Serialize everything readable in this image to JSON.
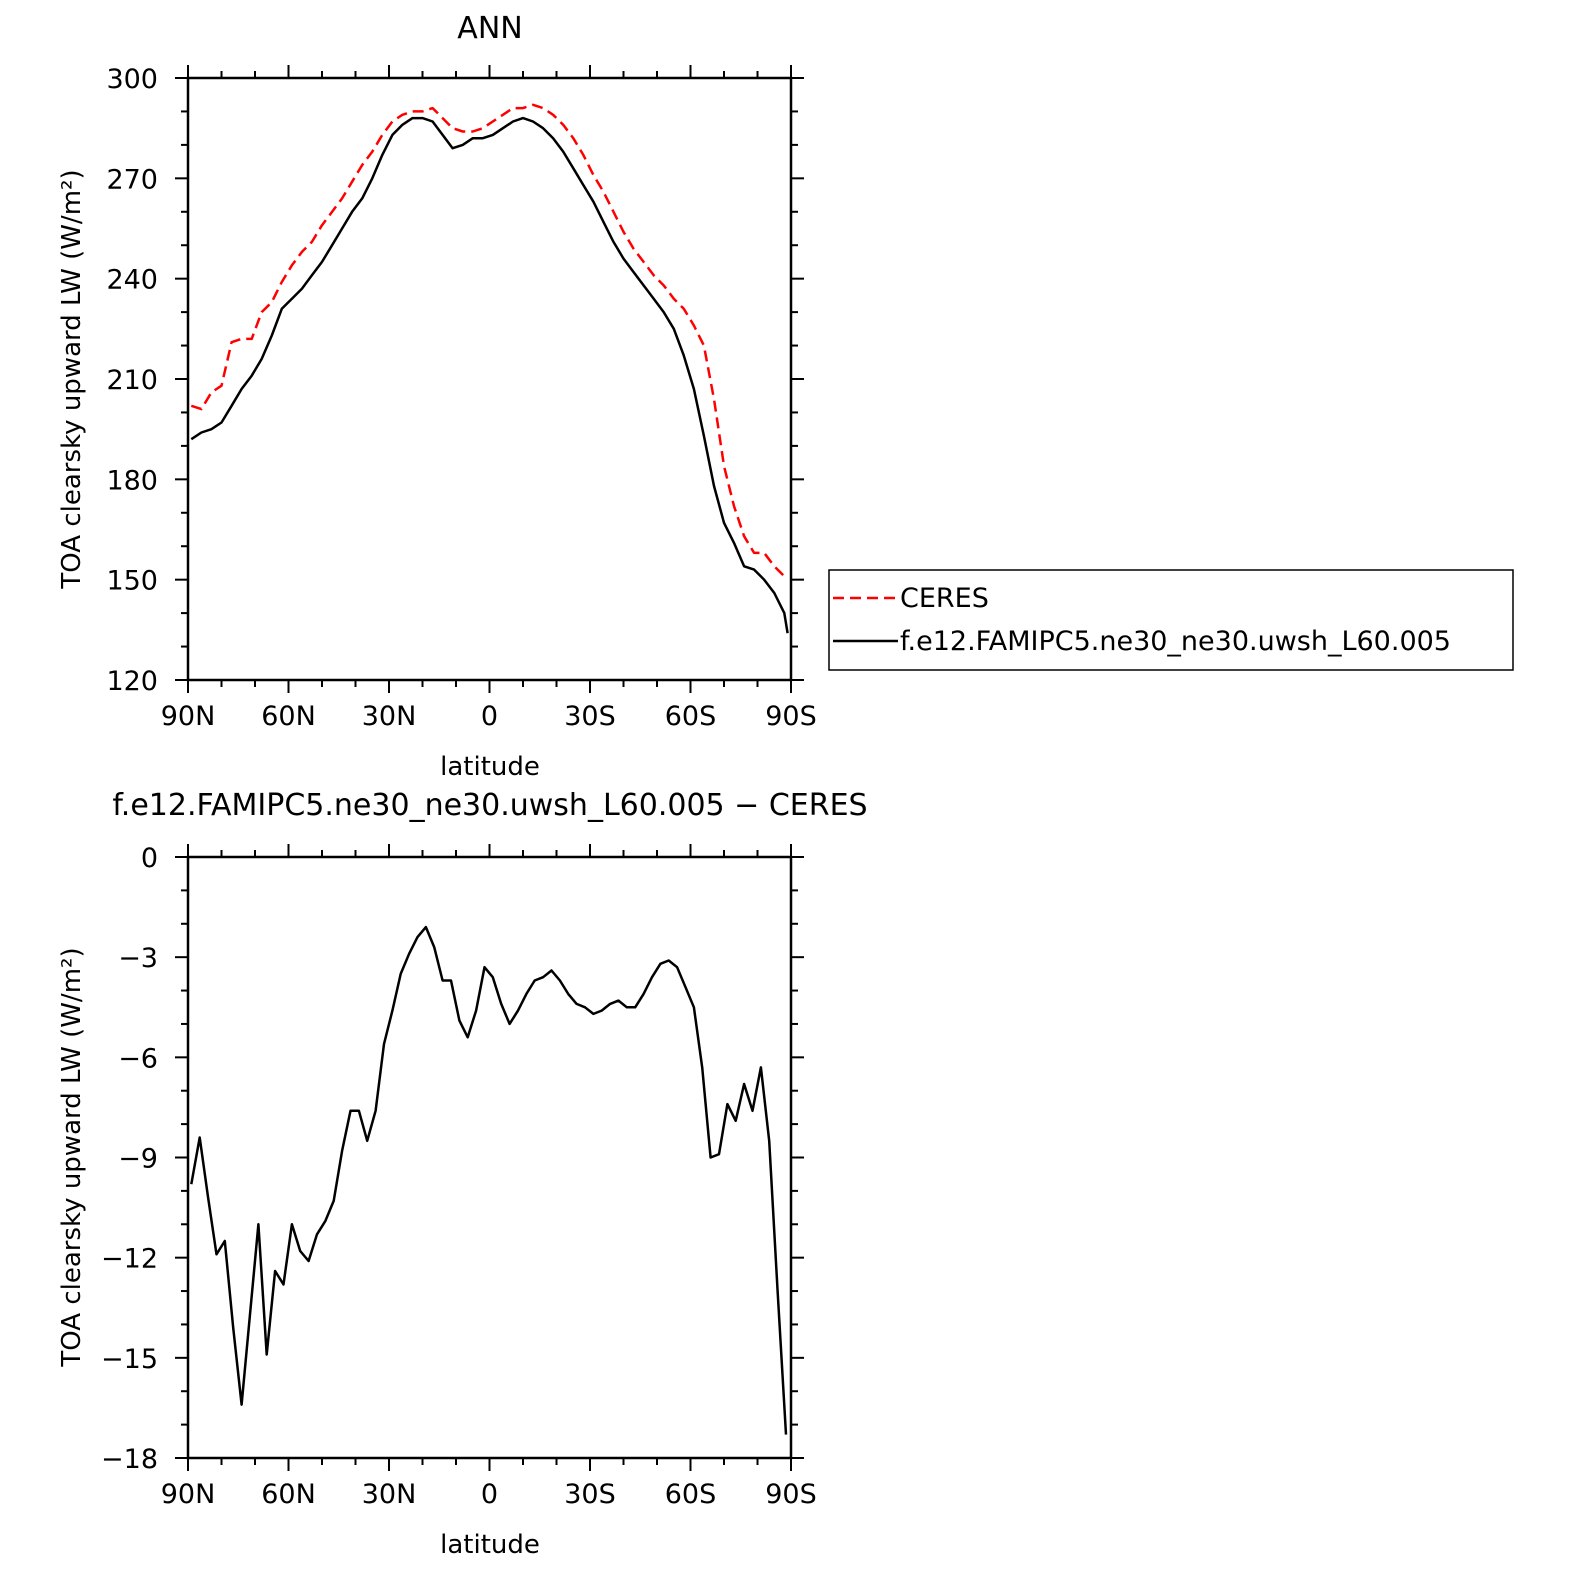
{
  "chart_data": [
    {
      "type": "line",
      "title": "ANN",
      "xlabel": "latitude",
      "ylabel": "TOA clearsky upward LW (W/m²)",
      "xlim": [
        90,
        -90
      ],
      "ylim": [
        120,
        300
      ],
      "x_ticks": [
        90,
        60,
        30,
        0,
        -30,
        -60,
        -90
      ],
      "x_tick_labels": [
        "90N",
        "60N",
        "30N",
        "0",
        "30S",
        "60S",
        "90S"
      ],
      "y_ticks": [
        120,
        150,
        180,
        210,
        240,
        270,
        300
      ],
      "y_tick_labels": [
        "120",
        "150",
        "180",
        "210",
        "240",
        "270",
        "300"
      ],
      "legend_position": "right",
      "series": [
        {
          "name": "CERES",
          "color": "#ff0000",
          "style": "dashed",
          "x": [
            89,
            86,
            83,
            80,
            77,
            74,
            71,
            68,
            65,
            62,
            59,
            56,
            53,
            50,
            47,
            44,
            41,
            38,
            35,
            32,
            29,
            26,
            23,
            20,
            17,
            14,
            11,
            8,
            5,
            2,
            -1,
            -4,
            -7,
            -10,
            -13,
            -16,
            -19,
            -22,
            -25,
            -28,
            -31,
            -34,
            -37,
            -40,
            -43,
            -46,
            -49,
            -52,
            -55,
            -58,
            -61,
            -64,
            -67,
            -70,
            -73,
            -76,
            -79,
            -82,
            -85,
            -88,
            -89
          ],
          "y": [
            202,
            201,
            206,
            208,
            221,
            222,
            222,
            230,
            233,
            239,
            244,
            248,
            251,
            256,
            260,
            264,
            269,
            274,
            278,
            283,
            287,
            289,
            290,
            290,
            291,
            288,
            285,
            284,
            284,
            285,
            287,
            289,
            291,
            291,
            292,
            291,
            289,
            286,
            282,
            277,
            271,
            266,
            260,
            254,
            249,
            245,
            241,
            238,
            234,
            231,
            226,
            220,
            204,
            184,
            172,
            163,
            158,
            158,
            154,
            151,
            151
          ]
        },
        {
          "name": "f.e12.FAMIPC5.ne30_ne30.uwsh_L60.005",
          "color": "#000000",
          "style": "solid",
          "x": [
            89,
            86,
            83,
            80,
            77,
            74,
            71,
            68,
            65,
            62,
            59,
            56,
            53,
            50,
            47,
            44,
            41,
            38,
            35,
            32,
            29,
            26,
            23,
            20,
            17,
            14,
            11,
            8,
            5,
            2,
            -1,
            -4,
            -7,
            -10,
            -13,
            -16,
            -19,
            -22,
            -25,
            -28,
            -31,
            -34,
            -37,
            -40,
            -43,
            -46,
            -49,
            -52,
            -55,
            -58,
            -61,
            -64,
            -67,
            -70,
            -73,
            -76,
            -79,
            -82,
            -85,
            -88,
            -89
          ],
          "y": [
            192,
            194,
            195,
            197,
            202,
            207,
            211,
            216,
            223,
            231,
            234,
            237,
            241,
            245,
            250,
            255,
            260,
            264,
            270,
            277,
            283,
            286,
            288,
            288,
            287,
            283,
            279,
            280,
            282,
            282,
            283,
            285,
            287,
            288,
            287,
            285,
            282,
            278,
            273,
            268,
            263,
            257,
            251,
            246,
            242,
            238,
            234,
            230,
            225,
            217,
            207,
            193,
            178,
            167,
            161,
            154,
            153,
            150,
            146,
            140,
            134
          ]
        }
      ]
    },
    {
      "type": "line",
      "title": "f.e12.FAMIPC5.ne30_ne30.uwsh_L60.005 − CERES",
      "xlabel": "latitude",
      "ylabel": "TOA clearsky upward LW (W/m²)",
      "xlim": [
        90,
        -90
      ],
      "ylim": [
        -18,
        0
      ],
      "x_ticks": [
        90,
        60,
        30,
        0,
        -30,
        -60,
        -90
      ],
      "x_tick_labels": [
        "90N",
        "60N",
        "30N",
        "0",
        "30S",
        "60S",
        "90S"
      ],
      "y_ticks": [
        -18,
        -15,
        -12,
        -9,
        -6,
        -3,
        0
      ],
      "y_tick_labels": [
        "−18",
        "−15",
        "−12",
        "−9",
        "−6",
        "−3",
        "0"
      ],
      "series": [
        {
          "color": "#000000",
          "style": "solid",
          "x": [
            89,
            86.5,
            84,
            81.5,
            79,
            76.5,
            74,
            71.5,
            69,
            66.5,
            64,
            61.5,
            59,
            56.5,
            54,
            51.5,
            49,
            46.5,
            44,
            41.5,
            39,
            36.5,
            34,
            31.5,
            29,
            26.5,
            24,
            21.5,
            19,
            16.5,
            14,
            11.5,
            9,
            6.5,
            4,
            1.5,
            -1,
            -3.5,
            -6,
            -8.5,
            -11,
            -13.5,
            -16,
            -18.5,
            -21,
            -23.5,
            -26,
            -28.5,
            -31,
            -33.5,
            -36,
            -38.5,
            -41,
            -43.5,
            -46,
            -48.5,
            -51,
            -53.5,
            -56,
            -58.5,
            -61,
            -63.5,
            -66,
            -68.5,
            -71,
            -73.5,
            -76,
            -78.5,
            -81,
            -83.5,
            -86,
            -88.5
          ],
          "y": [
            -9.8,
            -8.4,
            -10.2,
            -11.9,
            -11.5,
            -14.1,
            -16.4,
            -13.7,
            -11.0,
            -14.9,
            -12.4,
            -12.8,
            -11.0,
            -11.8,
            -12.1,
            -11.3,
            -10.9,
            -10.3,
            -8.8,
            -7.6,
            -7.6,
            -8.5,
            -7.6,
            -5.6,
            -4.6,
            -3.5,
            -2.9,
            -2.4,
            -2.1,
            -2.7,
            -3.7,
            -3.7,
            -4.9,
            -5.4,
            -4.6,
            -3.3,
            -3.6,
            -4.4,
            -5.0,
            -4.6,
            -4.1,
            -3.7,
            -3.6,
            -3.4,
            -3.7,
            -4.1,
            -4.4,
            -4.5,
            -4.7,
            -4.6,
            -4.4,
            -4.3,
            -4.5,
            -4.5,
            -4.1,
            -3.6,
            -3.2,
            -3.1,
            -3.3,
            -3.9,
            -4.5,
            -6.3,
            -9.0,
            -8.9,
            -7.4,
            -7.9,
            -6.8,
            -7.6,
            -6.3,
            -8.5,
            -13.0,
            -17.3
          ]
        }
      ]
    }
  ]
}
